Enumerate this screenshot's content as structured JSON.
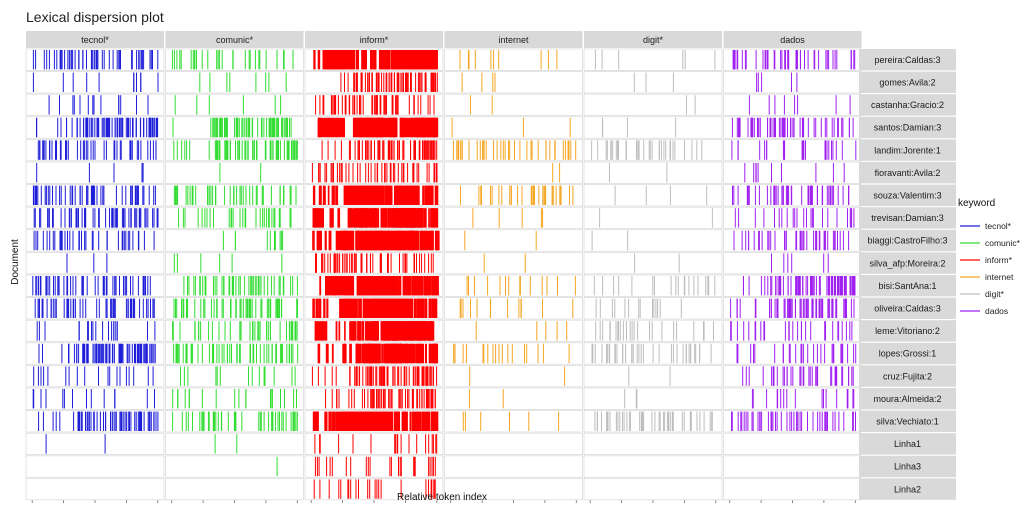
{
  "chart_data": {
    "type": "dispersion",
    "title": "Lexical dispersion plot",
    "xlabel": "Relative token index",
    "ylabel": "Document",
    "xlim": [
      0,
      1
    ],
    "x_ticks": [
      "0.00",
      "0.25",
      "0.50",
      "0.75",
      "1.00"
    ],
    "keywords": [
      "tecnol*",
      "comunic*",
      "inform*",
      "internet",
      "digit*",
      "dados"
    ],
    "documents": [
      "pereira:Caldas:3",
      "gomes:Avila:2",
      "castanha:Gracio:2",
      "santos:Damian:3",
      "landim:Jorente:1",
      "fioravanti:Avila:2",
      "souza:Valentim:3",
      "trevisan:Damian:3",
      "biaggi:CastroFilho:3",
      "silva_afp:Moreira:2",
      "bisi:SantAna:1",
      "oliveira:Caldas:3",
      "leme:Vitoriano:2",
      "lopes:Grossi:1",
      "cruz:Fujita:2",
      "moura:Almeida:2",
      "silva:Vechiato:1",
      "Linha1",
      "Linha3",
      "Linha2"
    ],
    "legend": {
      "title": "keyword",
      "entries": [
        {
          "label": "tecnol*",
          "color": "#1f1fd9"
        },
        {
          "label": "comunic*",
          "color": "#33dd33"
        },
        {
          "label": "inform*",
          "color": "#ff0000"
        },
        {
          "label": "internet",
          "color": "#f5a623"
        },
        {
          "label": "digit*",
          "color": "#bdbdbd"
        },
        {
          "label": "dados",
          "color": "#a020f0"
        }
      ]
    },
    "density": [
      [
        0.55,
        0.3,
        0.95,
        0.1,
        0.06,
        0.5
      ],
      [
        0.12,
        0.08,
        0.7,
        0.04,
        0.03,
        0.05
      ],
      [
        0.15,
        0.06,
        0.6,
        0.02,
        0.02,
        0.08
      ],
      [
        0.85,
        0.7,
        0.95,
        0.03,
        0.04,
        0.6
      ],
      [
        0.5,
        0.75,
        0.7,
        0.4,
        0.35,
        0.25
      ],
      [
        0.05,
        0.02,
        0.6,
        0.02,
        0.02,
        0.1
      ],
      [
        0.6,
        0.45,
        0.95,
        0.35,
        0.04,
        0.5
      ],
      [
        0.6,
        0.35,
        0.95,
        0.05,
        0.02,
        0.25
      ],
      [
        0.4,
        0.1,
        0.95,
        0.02,
        0.02,
        0.45
      ],
      [
        0.03,
        0.06,
        0.6,
        0.02,
        0.02,
        0.06
      ],
      [
        0.55,
        0.5,
        0.95,
        0.15,
        0.2,
        0.85
      ],
      [
        0.55,
        0.55,
        0.95,
        0.15,
        0.15,
        0.7
      ],
      [
        0.2,
        0.4,
        0.9,
        0.05,
        0.25,
        0.3
      ],
      [
        0.85,
        0.6,
        0.95,
        0.2,
        0.4,
        0.3
      ],
      [
        0.2,
        0.15,
        0.85,
        0.02,
        0.02,
        0.4
      ],
      [
        0.15,
        0.2,
        0.65,
        0.02,
        0.03,
        0.2
      ],
      [
        0.65,
        0.5,
        0.95,
        0.06,
        0.5,
        0.5
      ],
      [
        0.02,
        0.02,
        0.2,
        0.0,
        0.0,
        0.0
      ],
      [
        0.0,
        0.01,
        0.25,
        0.0,
        0.0,
        0.0
      ],
      [
        0.0,
        0.0,
        0.25,
        0.0,
        0.0,
        0.0
      ]
    ]
  }
}
